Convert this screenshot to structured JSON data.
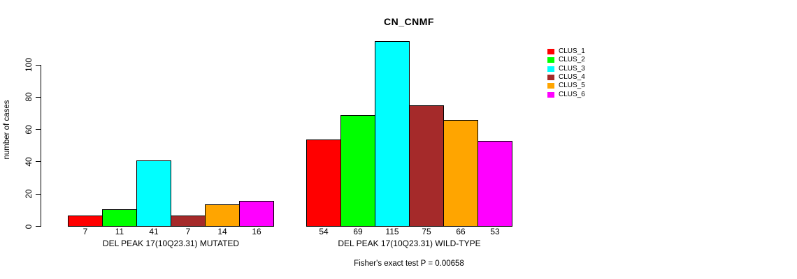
{
  "chart_data": {
    "type": "bar",
    "title": "CN_CNMF",
    "ylabel": "number of cases",
    "xlabel": "",
    "ylim": [
      0,
      115
    ],
    "yticks": [
      0,
      20,
      40,
      60,
      80,
      100
    ],
    "grid": false,
    "legend_position": "right",
    "background": "#FFFFFF",
    "bar_border_color": "#000000",
    "categories": [
      "DEL PEAK 17(10Q23.31) MUTATED",
      "DEL PEAK 17(10Q23.31) WILD-TYPE"
    ],
    "series": [
      {
        "name": "CLUS_1",
        "color": "#FF0000",
        "values": [
          7,
          54
        ]
      },
      {
        "name": "CLUS_2",
        "color": "#00FF00",
        "values": [
          11,
          69
        ]
      },
      {
        "name": "CLUS_3",
        "color": "#00FFFF",
        "values": [
          41,
          115
        ]
      },
      {
        "name": "CLUS_4",
        "color": "#A52A2A",
        "values": [
          7,
          75
        ]
      },
      {
        "name": "CLUS_5",
        "color": "#FFA500",
        "values": [
          14,
          66
        ]
      },
      {
        "name": "CLUS_6",
        "color": "#FF00FF",
        "values": [
          16,
          53
        ]
      }
    ],
    "bar_value_labels": [
      [
        "7",
        "11",
        "41",
        "7",
        "14",
        "16"
      ],
      [
        "54",
        "69",
        "115",
        "75",
        "66",
        "53"
      ]
    ],
    "annotation": "Fisher's exact test P = 0.00658"
  }
}
